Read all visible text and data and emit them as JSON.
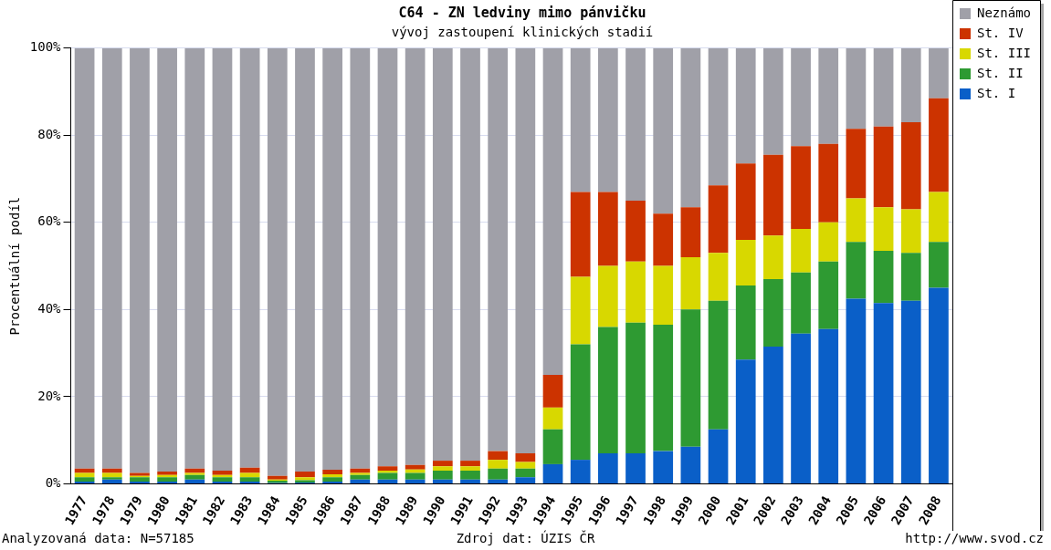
{
  "chart_data": {
    "type": "bar",
    "title": "C64 - ZN ledviny mimo pánvičku",
    "subtitle": "vývoj zastoupení klinických stadií",
    "ylabel": "Procentuální podíl",
    "categories": [
      "1977",
      "1978",
      "1979",
      "1980",
      "1981",
      "1982",
      "1983",
      "1984",
      "1985",
      "1986",
      "1987",
      "1988",
      "1989",
      "1990",
      "1991",
      "1992",
      "1993",
      "1994",
      "1995",
      "1996",
      "1997",
      "1998",
      "1999",
      "2000",
      "2001",
      "2002",
      "2003",
      "2004",
      "2005",
      "2006",
      "2007",
      "2008"
    ],
    "series": [
      {
        "name": "St. I",
        "color": "#0a5fc8",
        "values": [
          0.5,
          1,
          0.5,
          0.5,
          1,
          0.5,
          0.5,
          0.2,
          0.3,
          0.5,
          1,
          1,
          1,
          1,
          1,
          1,
          1.5,
          4.5,
          5.5,
          7,
          7,
          7.5,
          8.5,
          12.5,
          28.5,
          31.5,
          34.5,
          35.5,
          42.5,
          41.5,
          42,
          45
        ]
      },
      {
        "name": "St. II",
        "color": "#2e9a32",
        "values": [
          1,
          0.5,
          1,
          1,
          1,
          1,
          1,
          0.5,
          0.5,
          1,
          1,
          1.5,
          1.5,
          2,
          2,
          2.5,
          2,
          8,
          26.5,
          29,
          30,
          29,
          31.5,
          29.5,
          17,
          15.5,
          14,
          15.5,
          13,
          12,
          11,
          10.5
        ]
      },
      {
        "name": "St. III",
        "color": "#d8d800",
        "values": [
          1,
          1,
          0.3,
          0.5,
          0.5,
          0.5,
          1,
          0.3,
          0.7,
          0.7,
          0.5,
          0.5,
          0.8,
          1,
          1,
          2,
          1.5,
          5,
          15.5,
          14,
          14,
          13.5,
          12,
          11,
          10.5,
          10,
          10,
          9,
          10,
          10,
          10,
          11.5
        ]
      },
      {
        "name": "St. IV",
        "color": "#cc3300",
        "values": [
          1,
          1,
          0.7,
          0.8,
          1,
          1,
          1.2,
          0.8,
          1.3,
          1,
          1,
          1,
          1,
          1.3,
          1.3,
          2,
          2,
          7.5,
          19.5,
          17,
          14,
          12,
          11.5,
          15.5,
          17.5,
          18.5,
          19,
          18,
          16,
          18.5,
          20,
          21.5
        ]
      },
      {
        "name": "Neznámo",
        "color": "#a0a0a8",
        "values": [
          96.5,
          96.5,
          97.5,
          97.2,
          96.5,
          97,
          96.3,
          98.2,
          97.2,
          96.8,
          96.5,
          96,
          95.7,
          94.7,
          94.7,
          92.5,
          93,
          75,
          33,
          33,
          35,
          38,
          36.5,
          31.5,
          26.5,
          24.5,
          22.5,
          22,
          18.5,
          18,
          17,
          11.5
        ]
      }
    ],
    "stacked": true,
    "ylim": [
      0,
      100
    ],
    "yticks": [
      {
        "value": 0,
        "label": "0%"
      },
      {
        "value": 20,
        "label": "20%"
      },
      {
        "value": 40,
        "label": "40%"
      },
      {
        "value": 60,
        "label": "60%"
      },
      {
        "value": 80,
        "label": "80%"
      },
      {
        "value": 100,
        "label": "100%"
      }
    ],
    "grid": "y",
    "legend": "top right",
    "annotations": [
      "Analyzovaná data: N=57185",
      "Zdroj dat: ÚZIS ČR",
      "http://www.svod.cz"
    ]
  }
}
